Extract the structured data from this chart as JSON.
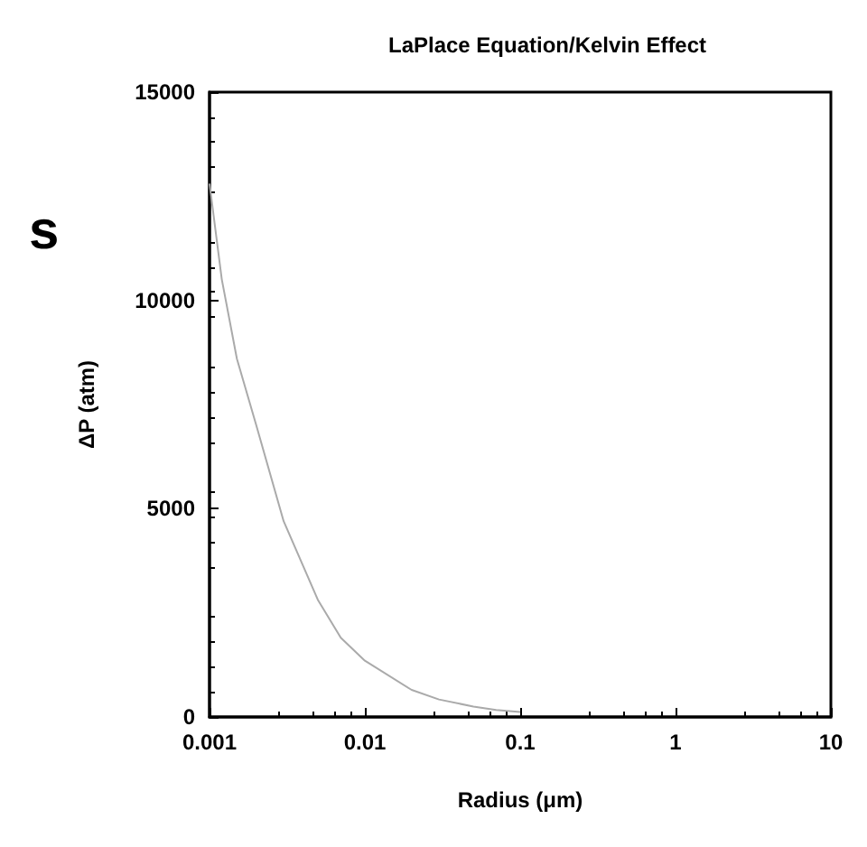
{
  "chart_data": {
    "type": "line",
    "title": "LaPlace Equation/Kelvin Effect",
    "xlabel": "Radius (μm)",
    "ylabel": "ΔP (atm)",
    "annotations": [
      "s"
    ],
    "x": [
      0.001,
      0.0012,
      0.0015,
      0.002,
      0.003,
      0.005,
      0.007,
      0.01,
      0.02,
      0.03,
      0.05,
      0.07,
      0.1
    ],
    "series": [
      {
        "color": "#aaaaaa",
        "values": [
          12800,
          10500,
          8600,
          7000,
          4700,
          2800,
          1900,
          1350,
          650,
          420,
          250,
          170,
          120
        ]
      }
    ],
    "log": "x",
    "xlim": [
      0.001,
      10
    ],
    "xticks": [
      0.001,
      0.01,
      0.1,
      1,
      10
    ],
    "ylim": [
      0,
      15000
    ],
    "yticks": [
      0,
      5000,
      10000,
      15000
    ],
    "grid": false,
    "marker": "none",
    "line_style": "solid"
  }
}
